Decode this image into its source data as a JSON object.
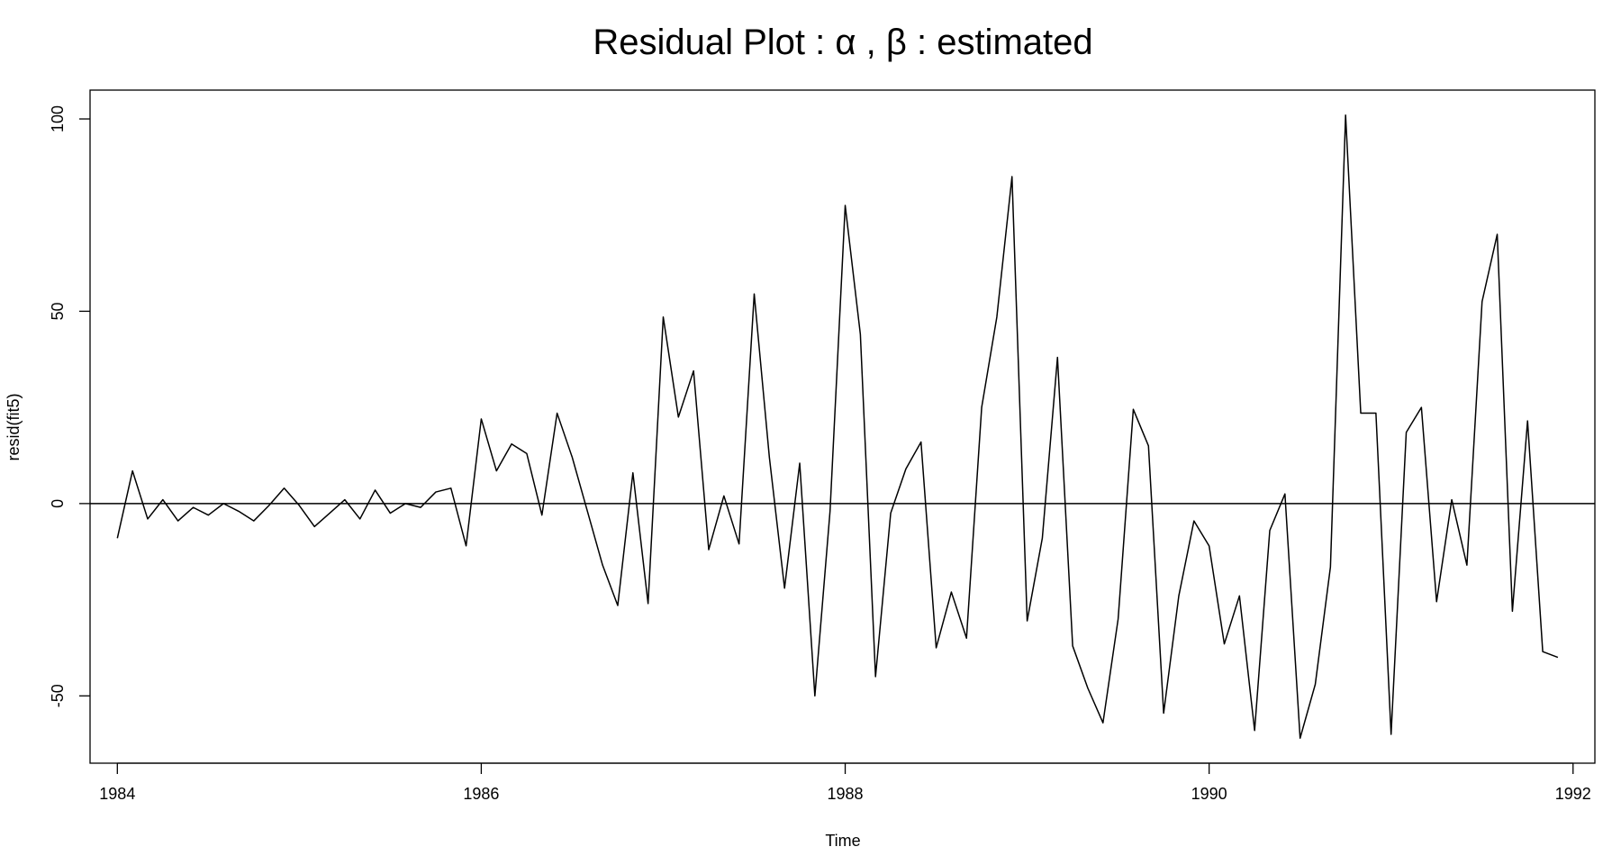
{
  "chart_data": {
    "type": "line",
    "title": "Residual Plot :  α , β  : estimated",
    "xlabel": "Time",
    "ylabel": "resid(fit5)",
    "xlim": [
      1983.85,
      1992.12
    ],
    "ylim": [
      -67.5,
      107.5
    ],
    "x_ticks": [
      1984,
      1986,
      1988,
      1990,
      1992
    ],
    "y_ticks": [
      -50,
      0,
      50,
      100
    ],
    "reference_line_y": 0,
    "grid": false,
    "legend": "none",
    "start": 1984,
    "frequency": 12,
    "series": [
      {
        "values": [
          -9,
          8.5,
          -4,
          1,
          -4.5,
          -1,
          -3,
          0,
          -2,
          -4.5,
          -0.5,
          4,
          -0.5,
          -6,
          -2.5,
          1,
          -4,
          3.5,
          -2.5,
          0,
          -1,
          3,
          4,
          -11,
          22,
          8.5,
          15.5,
          13,
          -3,
          23.5,
          12,
          -2,
          -16,
          -26.5,
          8,
          -26,
          48.5,
          22.5,
          34.5,
          -12,
          2,
          -10.5,
          54.5,
          12,
          -22,
          10.5,
          -50,
          -2,
          77.5,
          44,
          -45,
          -2.5,
          9,
          16,
          -37.5,
          -23,
          -35,
          25,
          48.5,
          85,
          -30.5,
          -9,
          38,
          -37,
          -48,
          -57,
          -30,
          24.5,
          15,
          -54.5,
          -24,
          -4.5,
          -11,
          -36.5,
          -24,
          -59,
          -7,
          2.5,
          -61,
          -47,
          -16.5,
          101,
          23.5,
          23.5,
          -60,
          18.5,
          25,
          -25.5,
          1,
          -16,
          52.5,
          70,
          -28,
          21.5,
          -38.5,
          -40
        ]
      }
    ]
  }
}
